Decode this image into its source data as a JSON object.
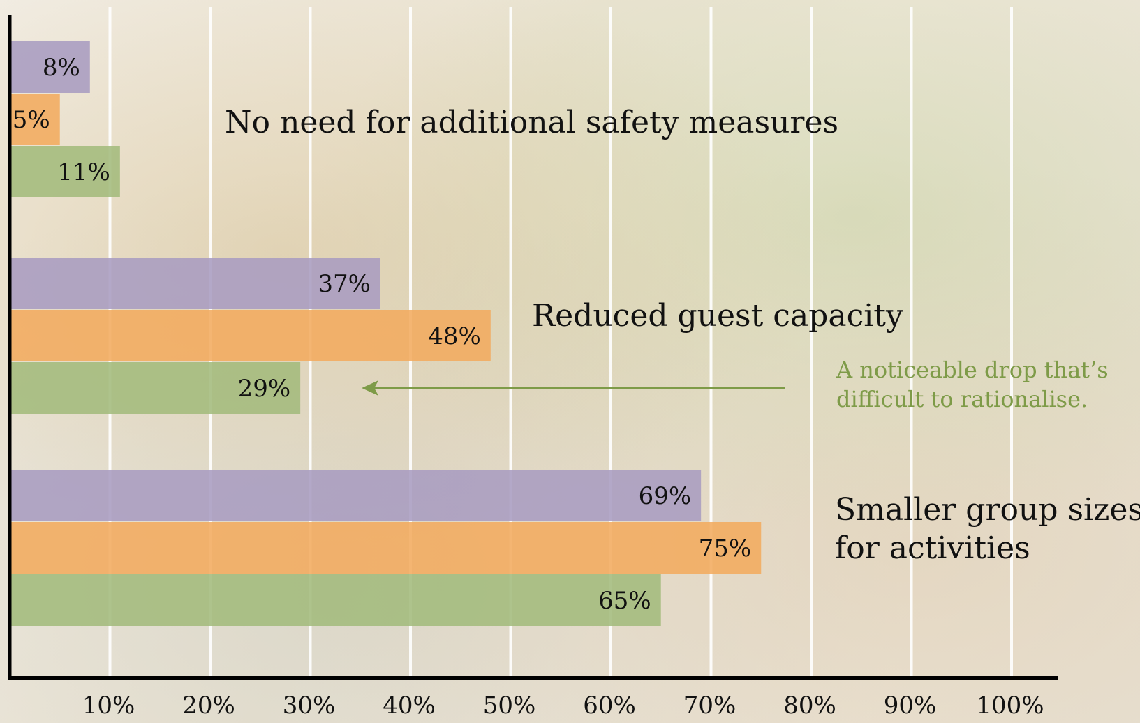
{
  "chart_data": {
    "type": "bar",
    "orientation": "horizontal",
    "title": "",
    "xlabel": "",
    "ylabel": "",
    "xlim": [
      0,
      100
    ],
    "x_ticks": [
      "10%",
      "20%",
      "30%",
      "40%",
      "50%",
      "60%",
      "70%",
      "80%",
      "90%",
      "100%"
    ],
    "grid": "vertical",
    "legend": "none",
    "categories": [
      [
        "No need for additional safety measures"
      ],
      [
        "Reduced guest capacity"
      ],
      [
        "Smaller group sizes",
        "for activities"
      ]
    ],
    "series": [
      {
        "color": "#a89cc0",
        "values": [
          8,
          37,
          69
        ],
        "labels": [
          "8%",
          "37%",
          "69%"
        ]
      },
      {
        "color": "#f2ab5e",
        "values": [
          5,
          48,
          75
        ],
        "labels": [
          "5%",
          "48%",
          "75%"
        ]
      },
      {
        "color": "#a3bb7c",
        "values": [
          11,
          29,
          65
        ],
        "labels": [
          "11%",
          "29%",
          "65%"
        ]
      }
    ],
    "annotation": {
      "lines": [
        "A noticeable drop that’s",
        "difficult to rationalise."
      ],
      "color": "#7e9b48",
      "points_to": {
        "category_index": 1,
        "series_index": 2
      }
    }
  }
}
